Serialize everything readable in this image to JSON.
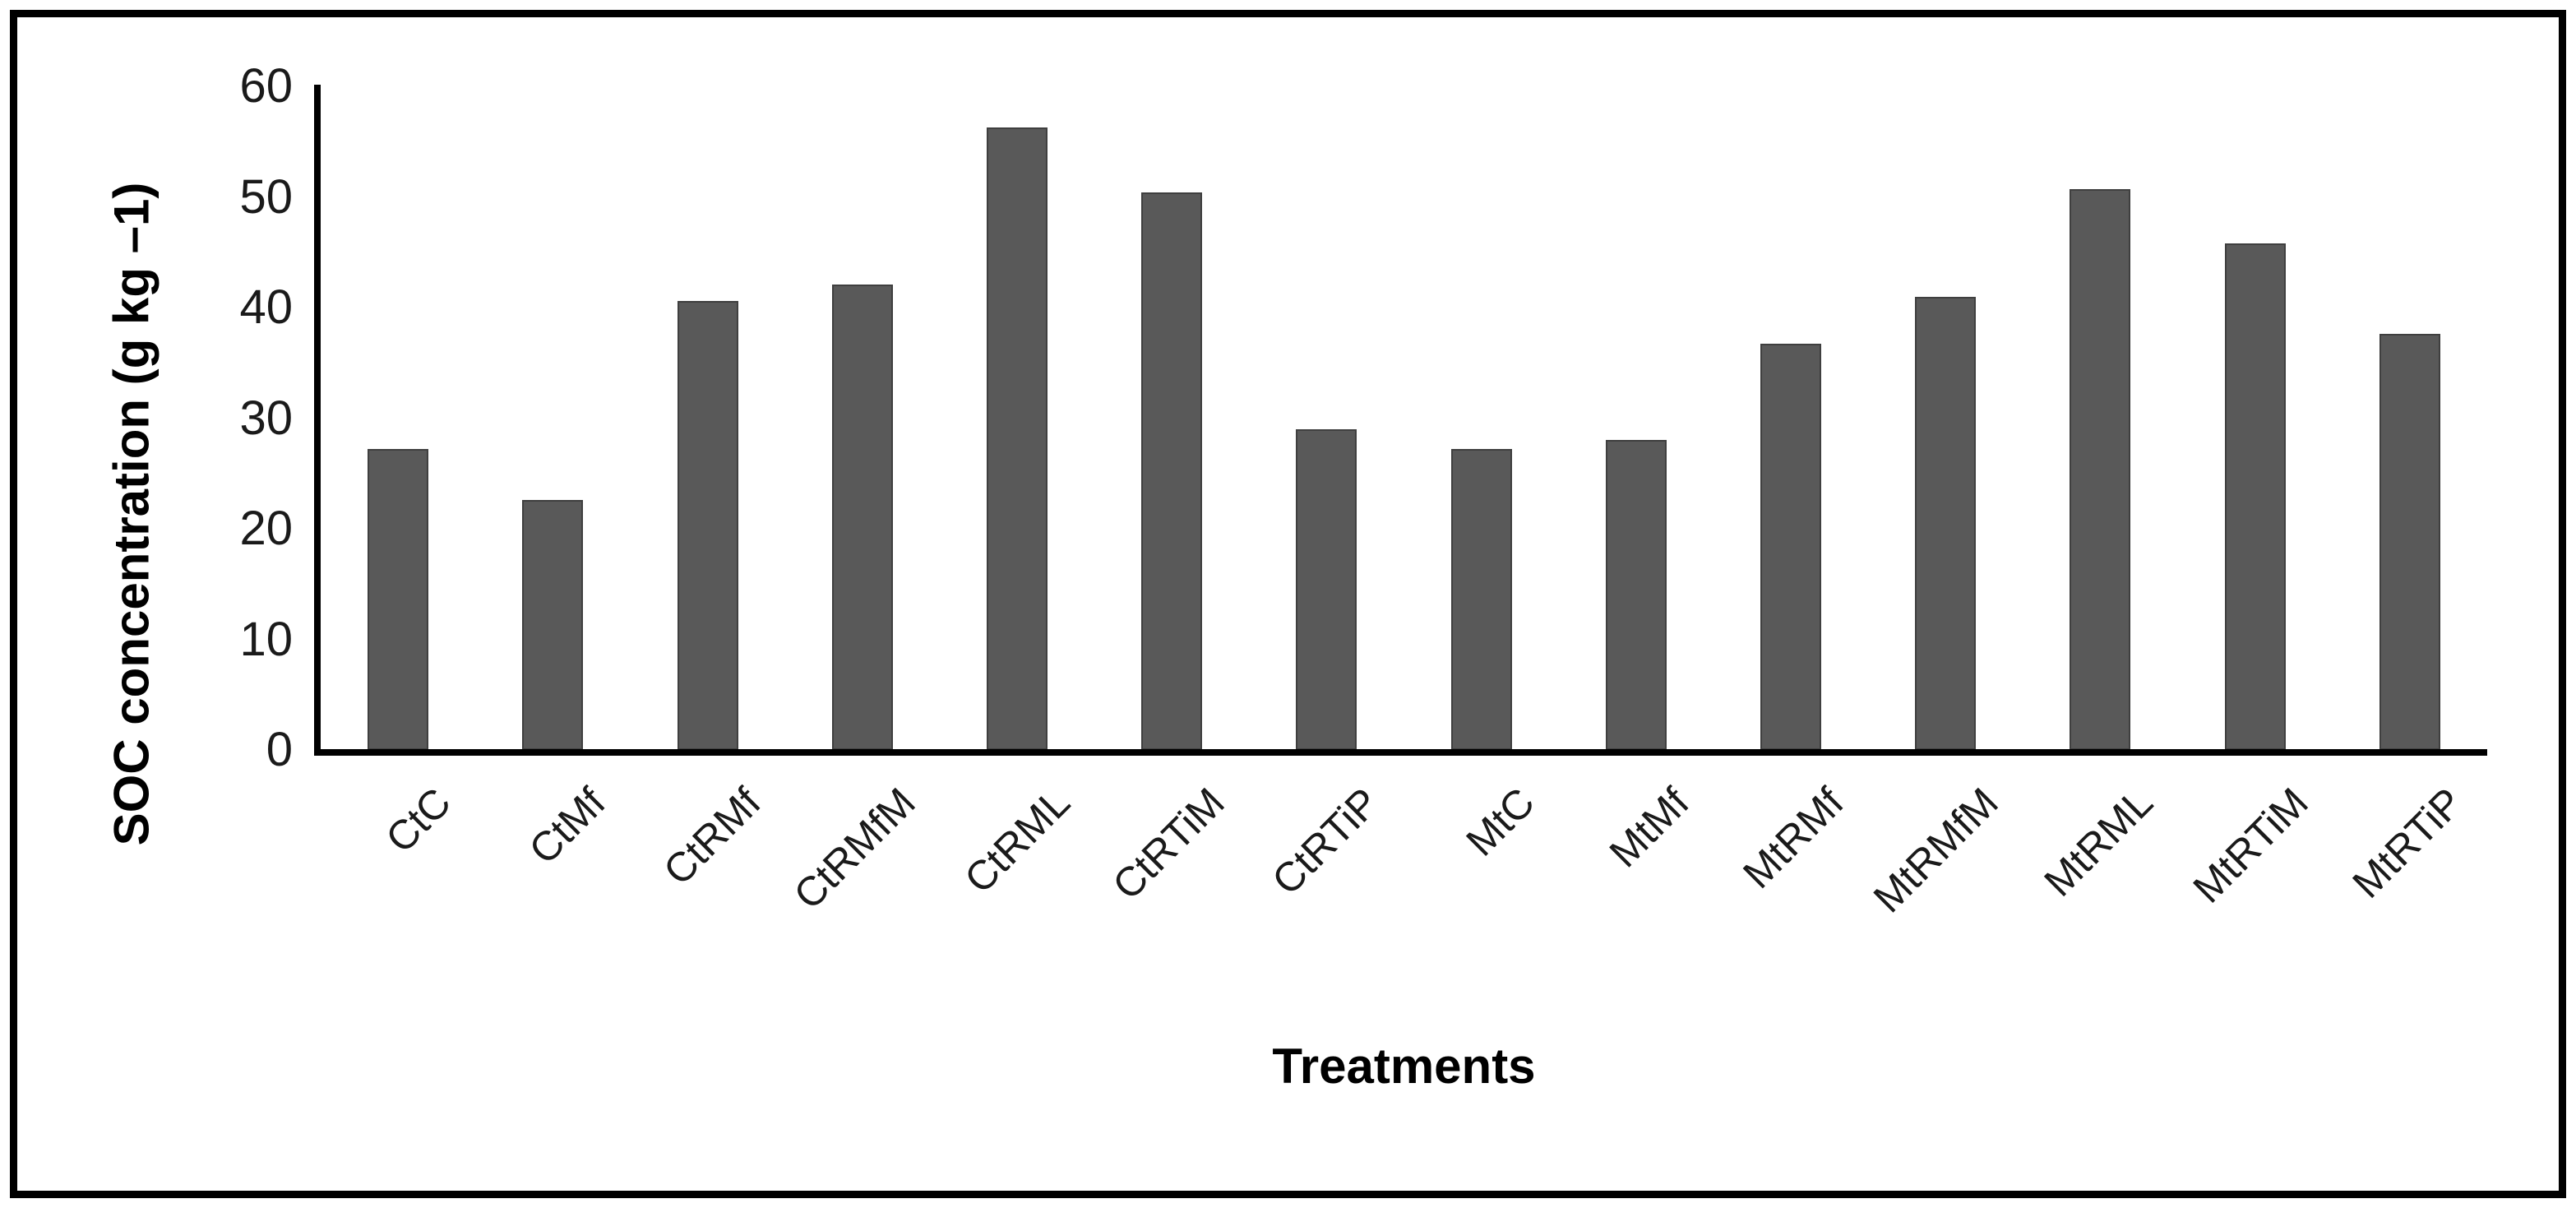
{
  "chart_data": {
    "type": "bar",
    "title": "",
    "categories": [
      "CtC",
      "CtMf",
      "CtRMf",
      "CtRMfM",
      "CtRML",
      "CtRTiM",
      "CtRTiP",
      "MtC",
      "MtMf",
      "MtRMf",
      "MtRMfM",
      "MtRML",
      "MtRTiM",
      "MtRTiP"
    ],
    "values": [
      27.2,
      22.6,
      40.6,
      42.1,
      56.3,
      50.4,
      29.0,
      27.2,
      28.0,
      36.7,
      41.0,
      50.7,
      45.8,
      37.6
    ],
    "xlabel": "Treatments",
    "ylabel": "SOC concentration (g kg –1)",
    "ylim": [
      0,
      60
    ],
    "yticks": [
      0,
      10,
      20,
      30,
      40,
      50,
      60
    ],
    "grid": false,
    "legend_position": "none",
    "bar_color": "#595959",
    "bar_border_color": "#3f3f3f",
    "axis_color": "#000000",
    "frame_color": "#000000",
    "background_color": "#ffffff"
  }
}
